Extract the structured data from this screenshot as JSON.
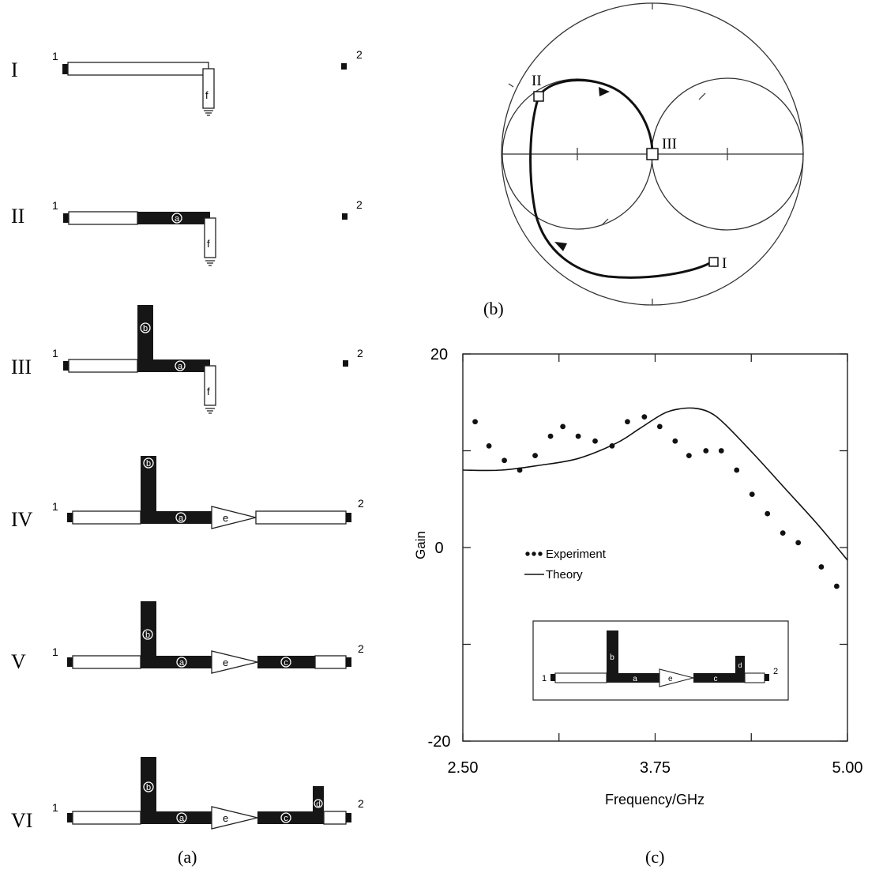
{
  "panels": {
    "a": {
      "label": "(a)",
      "stages": [
        {
          "numeral": "I"
        },
        {
          "numeral": "II"
        },
        {
          "numeral": "III"
        },
        {
          "numeral": "IV"
        },
        {
          "numeral": "V"
        },
        {
          "numeral": "VI"
        }
      ],
      "port_labels": {
        "input": "1",
        "output": "2"
      },
      "element_labels": {
        "a": "a",
        "b": "b",
        "c": "c",
        "d": "d",
        "e": "e",
        "f": "f"
      }
    },
    "b": {
      "label": "(b)",
      "markers": {
        "I": "I",
        "II": "II",
        "III": "III"
      }
    },
    "c": {
      "label": "(c)",
      "legend": {
        "experiment": "Experiment",
        "theory": "Theory",
        "placement": "center-left"
      },
      "inset_port_labels": {
        "input": "1",
        "output": "2"
      }
    }
  },
  "chart_data": {
    "type": "scatter",
    "xlabel": "Frequency/GHz",
    "ylabel": "Gain",
    "xlim": [
      2.5,
      5.0
    ],
    "ylim": [
      -20,
      20
    ],
    "xticks": [
      2.5,
      3.75,
      5.0
    ],
    "xtick_labels": [
      "2.50",
      "3.75",
      "5.00"
    ],
    "yticks": [
      20,
      0,
      -20
    ],
    "ytick_labels": [
      "20",
      "0",
      "-20"
    ],
    "grid": false,
    "series": [
      {
        "name": "Experiment",
        "kind": "points",
        "x": [
          2.58,
          2.67,
          2.77,
          2.87,
          2.97,
          3.07,
          3.15,
          3.25,
          3.36,
          3.47,
          3.57,
          3.68,
          3.78,
          3.88,
          3.97,
          4.08,
          4.18,
          4.28,
          4.38,
          4.48,
          4.58,
          4.68,
          4.83,
          4.93
        ],
        "y": [
          13,
          10.5,
          9,
          8,
          9.5,
          11.5,
          12.5,
          11.5,
          11,
          10.5,
          13,
          13.5,
          12.5,
          11,
          9.5,
          10,
          10,
          8,
          5.5,
          3.5,
          1.5,
          0.5,
          -2,
          -4
        ]
      },
      {
        "name": "Theory",
        "kind": "line",
        "x": [
          2.5,
          2.75,
          3.0,
          3.25,
          3.5,
          3.65,
          3.8,
          3.9,
          4.0,
          4.1,
          4.2,
          4.4,
          4.6,
          4.8,
          5.0
        ],
        "y": [
          8,
          8,
          8.5,
          9.2,
          10.8,
          12.3,
          13.8,
          14.3,
          14.4,
          14,
          12.8,
          9.5,
          6,
          2.5,
          -1.3
        ]
      }
    ]
  }
}
